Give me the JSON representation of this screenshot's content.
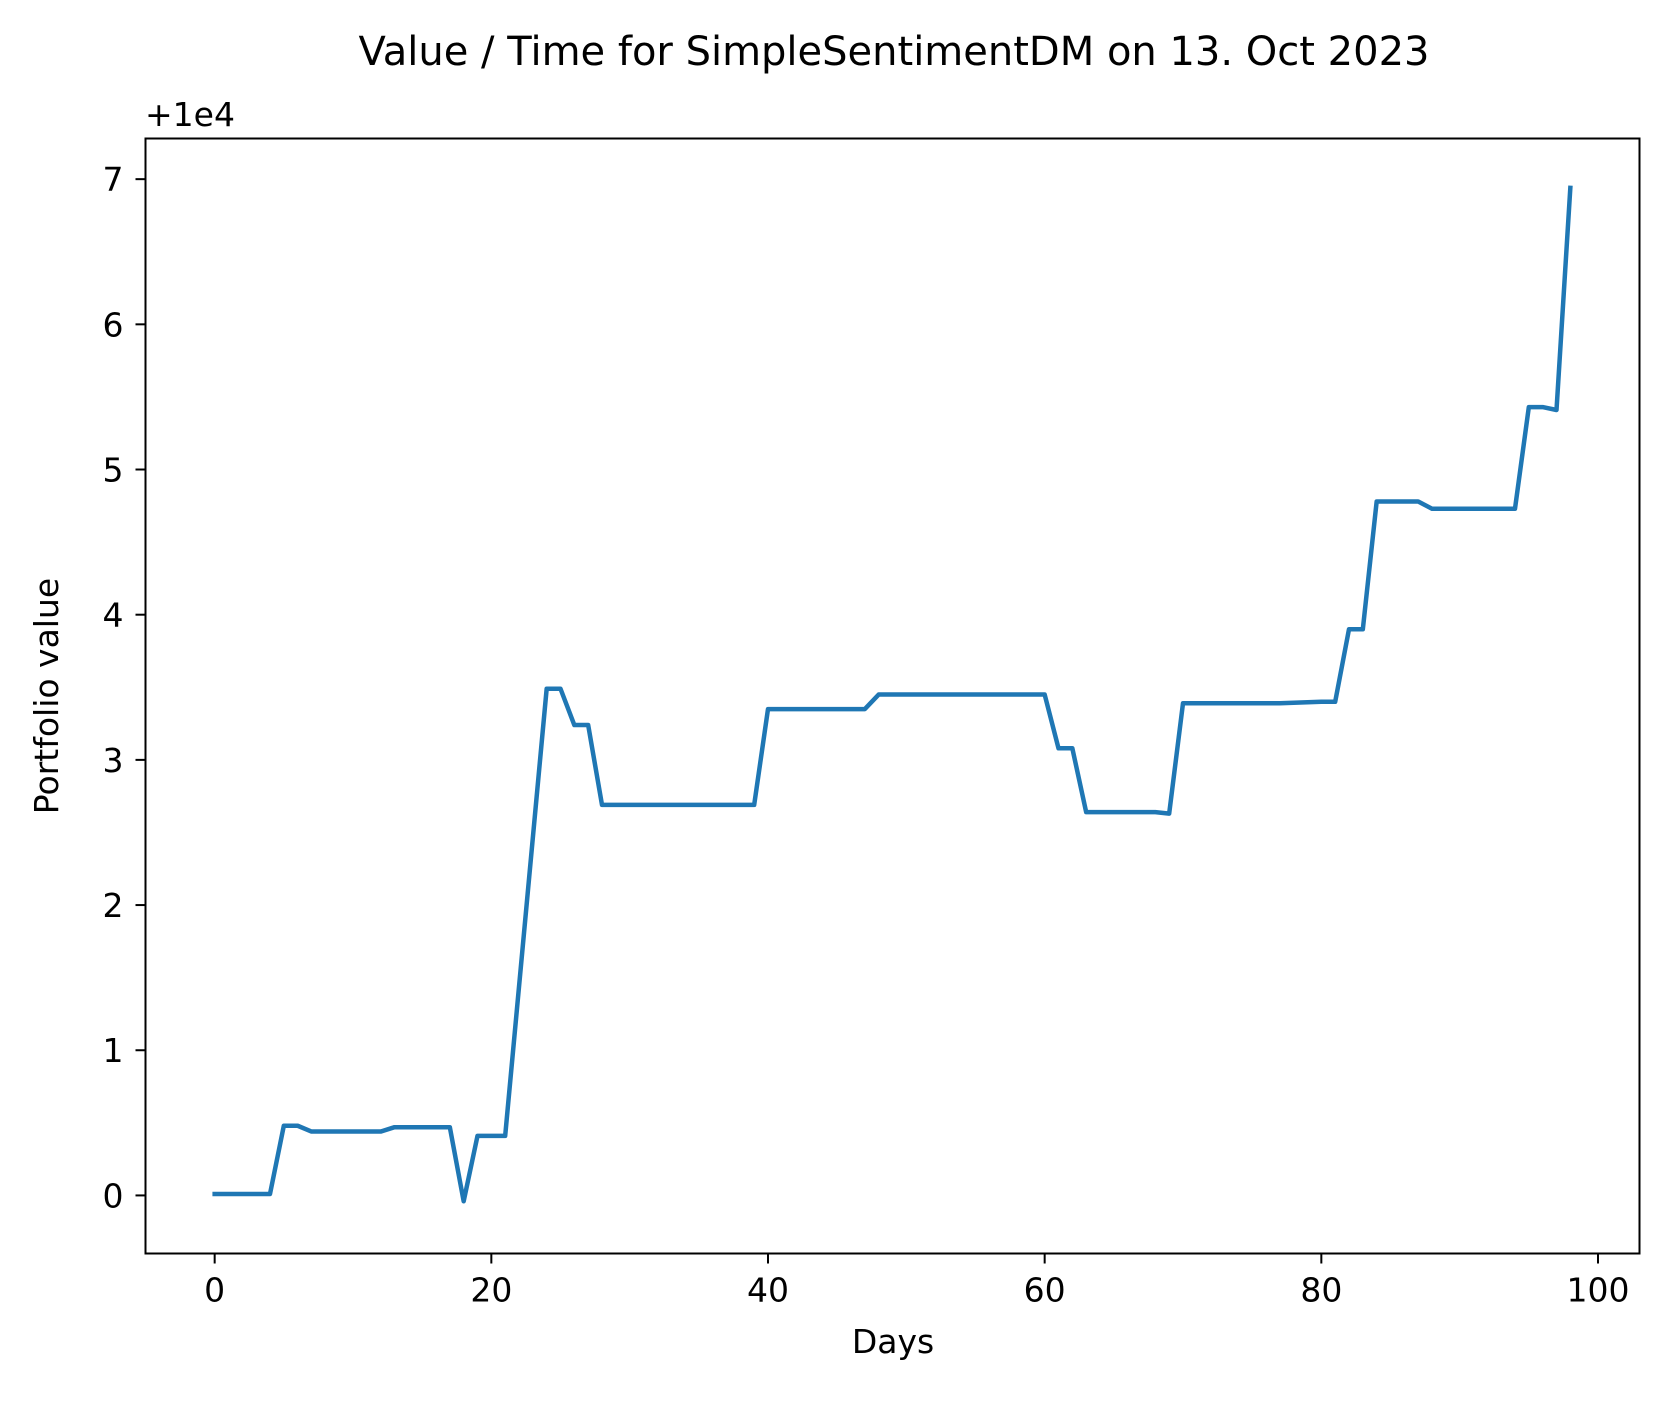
{
  "chart_data": {
    "type": "line",
    "title": "Value / Time for SimpleSentimentDM on 13. Oct 2023",
    "xlabel": "Days",
    "ylabel": "Portfolio value",
    "y_offset_label": "+1e4",
    "xlim": [
      -5,
      103
    ],
    "ylim": [
      -0.4,
      7.28
    ],
    "xticks": [
      0,
      20,
      40,
      60,
      80,
      100
    ],
    "yticks": [
      0,
      1,
      2,
      3,
      4,
      5,
      6,
      7
    ],
    "grid": false,
    "series": [
      {
        "color": "#1f77b4",
        "x": [
          0,
          4,
          5,
          6,
          7,
          12,
          13,
          17,
          18,
          19,
          21,
          24,
          25,
          26,
          27,
          28,
          39,
          40,
          47,
          48,
          60,
          61,
          62,
          63,
          68,
          69,
          70,
          77,
          80,
          81,
          82,
          83,
          84,
          87,
          88,
          94,
          95,
          96,
          97,
          98
        ],
        "values": [
          0.01,
          0.01,
          0.48,
          0.48,
          0.44,
          0.44,
          0.47,
          0.47,
          -0.04,
          0.41,
          0.41,
          3.49,
          3.49,
          3.24,
          3.24,
          2.69,
          2.69,
          3.35,
          3.35,
          3.45,
          3.45,
          3.08,
          3.08,
          2.64,
          2.64,
          2.63,
          3.39,
          3.39,
          3.4,
          3.4,
          3.9,
          3.9,
          4.78,
          4.78,
          4.73,
          4.73,
          5.43,
          5.43,
          5.41,
          6.94
        ]
      }
    ]
  }
}
